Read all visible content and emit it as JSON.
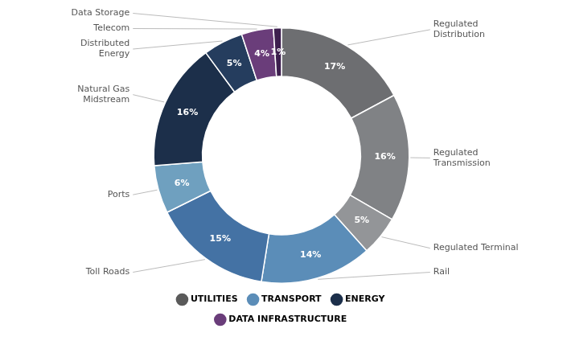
{
  "chart_data": {
    "type": "doughnut",
    "categories": [
      "Regulated\nDistribution",
      "Regulated\nTransmission",
      "Regulated Terminal",
      "Rail",
      "Toll Roads",
      "Ports",
      "Natural Gas\nMidstream",
      "Distributed\nEnergy",
      "Telecom",
      "Data Storage"
    ],
    "values": [
      17,
      16,
      5,
      14,
      15,
      6,
      16,
      5,
      4,
      1
    ],
    "value_labels": [
      "17%",
      "16%",
      "5%",
      "14%",
      "15%",
      "6%",
      "16%",
      "5%",
      "4%",
      "1%"
    ],
    "data_labels": true,
    "colors": [
      "#6d6e71",
      "#808285",
      "#939598",
      "#5b8db8",
      "#4472a4",
      "#6fa0bf",
      "#1c2f4a",
      "#253d5e",
      "#6a3d7a",
      "#3d1f4e"
    ],
    "legend": "bottom",
    "groups": [
      {
        "name": "UTILITIES",
        "color": "#5a5a5a"
      },
      {
        "name": "TRANSPORT",
        "color": "#5b8db8"
      },
      {
        "name": "ENERGY",
        "color": "#1c2f4a"
      },
      {
        "name": "DATA INFRASTRUCTURE",
        "color": "#6a3d7a"
      }
    ]
  }
}
